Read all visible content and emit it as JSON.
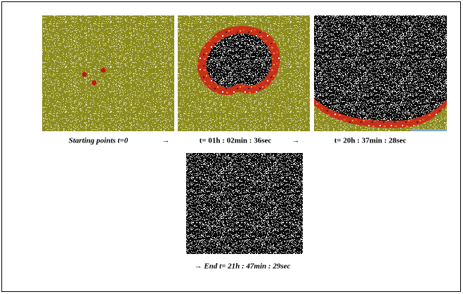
{
  "figure": {
    "panels": [
      {
        "caption": "Starting points  t=0"
      },
      {
        "caption": "t= 01h : 02min : 36sec"
      },
      {
        "caption": "t= 20h : 37min : 28sec"
      },
      {
        "caption": "→ End  t=  21h : 47min : 29sec"
      }
    ],
    "arrows": [
      "→",
      "→"
    ]
  }
}
